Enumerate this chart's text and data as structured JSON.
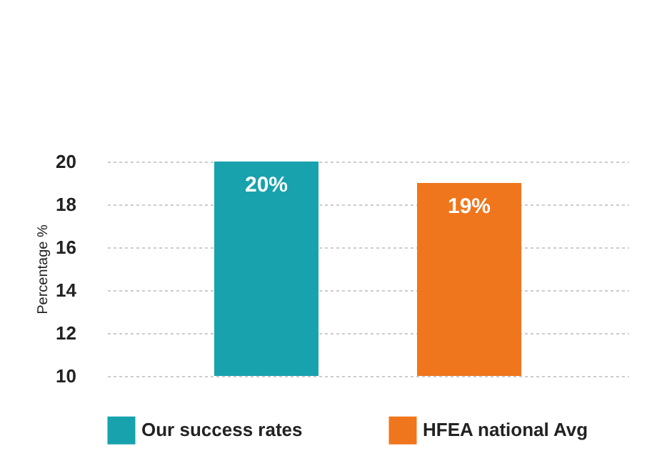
{
  "chart_data": {
    "type": "bar",
    "ylabel": "Percentage %",
    "categories": [
      null,
      null
    ],
    "series": [
      {
        "name": "Our success rates",
        "color": "#17a2ae",
        "values": [
          20,
          null
        ],
        "value_labels": [
          "20%",
          null
        ]
      },
      {
        "name": "HFEA national Avg",
        "color": "#ef761c",
        "values": [
          null,
          19
        ],
        "value_labels": [
          null,
          "19%"
        ]
      }
    ],
    "ylim": [
      10,
      20
    ],
    "yticks": [
      10,
      12,
      14,
      16,
      18,
      20
    ],
    "grid": "y",
    "legend": "bottom"
  }
}
